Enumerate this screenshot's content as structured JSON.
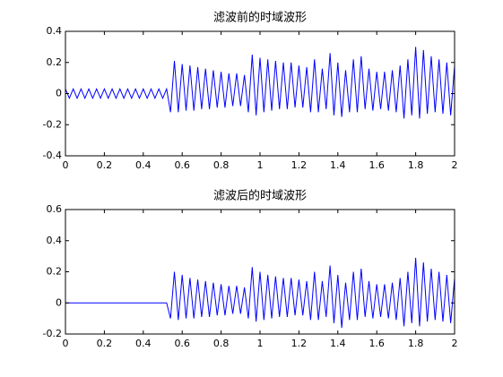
{
  "chart_data": [
    {
      "type": "line",
      "title": "滤波前的时域波形",
      "x": [
        0,
        0.02,
        0.04,
        0.06,
        0.08,
        0.1,
        0.12,
        0.14,
        0.16,
        0.18,
        0.2,
        0.22,
        0.24,
        0.26,
        0.28,
        0.3,
        0.32,
        0.34,
        0.36,
        0.38,
        0.4,
        0.42,
        0.44,
        0.46,
        0.48,
        0.5,
        0.52,
        0.54,
        0.56,
        0.58,
        0.6,
        0.62,
        0.64,
        0.66,
        0.68,
        0.7,
        0.72,
        0.74,
        0.76,
        0.78,
        0.8,
        0.82,
        0.84,
        0.86,
        0.88,
        0.9,
        0.92,
        0.94,
        0.96,
        0.98,
        1,
        1.02,
        1.04,
        1.06,
        1.08,
        1.1,
        1.12,
        1.14,
        1.16,
        1.18,
        1.2,
        1.22,
        1.24,
        1.26,
        1.28,
        1.3,
        1.32,
        1.34,
        1.36,
        1.38,
        1.4,
        1.42,
        1.44,
        1.46,
        1.48,
        1.5,
        1.52,
        1.54,
        1.56,
        1.58,
        1.6,
        1.62,
        1.64,
        1.66,
        1.68,
        1.7,
        1.72,
        1.74,
        1.76,
        1.78,
        1.8,
        1.82,
        1.84,
        1.86,
        1.88,
        1.9,
        1.92,
        1.94,
        1.96,
        1.98,
        2
      ],
      "series": [
        {
          "color": "#0000ff",
          "values": [
            0.03,
            -0.03,
            0.03,
            -0.03,
            0.03,
            -0.03,
            0.03,
            -0.03,
            0.03,
            -0.03,
            0.03,
            -0.03,
            0.03,
            -0.03,
            0.03,
            -0.03,
            0.03,
            -0.03,
            0.03,
            -0.03,
            0.03,
            -0.03,
            0.03,
            -0.03,
            0.03,
            -0.03,
            0.03,
            -0.12,
            0.21,
            -0.12,
            0.19,
            -0.11,
            0.18,
            -0.11,
            0.17,
            -0.1,
            0.16,
            -0.1,
            0.15,
            -0.09,
            0.14,
            -0.09,
            0.13,
            -0.08,
            0.13,
            -0.08,
            0.12,
            -0.12,
            0.25,
            -0.14,
            0.23,
            -0.12,
            0.22,
            -0.11,
            0.21,
            -0.1,
            0.2,
            -0.1,
            0.2,
            -0.09,
            0.18,
            -0.09,
            0.17,
            -0.12,
            0.22,
            -0.12,
            0.16,
            -0.1,
            0.26,
            -0.14,
            0.2,
            -0.15,
            0.15,
            -0.12,
            0.22,
            -0.12,
            0.24,
            -0.1,
            0.16,
            -0.11,
            0.14,
            -0.1,
            0.14,
            -0.11,
            0.15,
            -0.12,
            0.18,
            -0.16,
            0.22,
            -0.14,
            0.3,
            -0.16,
            0.28,
            -0.13,
            0.24,
            -0.12,
            0.22,
            -0.13,
            0.2,
            -0.14,
            0.18
          ]
        }
      ],
      "xlim": [
        0,
        2
      ],
      "xticks": [
        0,
        0.2,
        0.4,
        0.6,
        0.8,
        1,
        1.2,
        1.4,
        1.6,
        1.8,
        2
      ],
      "ylim": [
        -0.4,
        0.4
      ],
      "yticks": [
        -0.4,
        -0.2,
        0,
        0.2,
        0.4
      ]
    },
    {
      "type": "line",
      "title": "滤波后的时域波形",
      "x": [
        0,
        0.02,
        0.04,
        0.06,
        0.08,
        0.1,
        0.12,
        0.14,
        0.16,
        0.18,
        0.2,
        0.22,
        0.24,
        0.26,
        0.28,
        0.3,
        0.32,
        0.34,
        0.36,
        0.38,
        0.4,
        0.42,
        0.44,
        0.46,
        0.48,
        0.5,
        0.52,
        0.54,
        0.56,
        0.58,
        0.6,
        0.62,
        0.64,
        0.66,
        0.68,
        0.7,
        0.72,
        0.74,
        0.76,
        0.78,
        0.8,
        0.82,
        0.84,
        0.86,
        0.88,
        0.9,
        0.92,
        0.94,
        0.96,
        0.98,
        1,
        1.02,
        1.04,
        1.06,
        1.08,
        1.1,
        1.12,
        1.14,
        1.16,
        1.18,
        1.2,
        1.22,
        1.24,
        1.26,
        1.28,
        1.3,
        1.32,
        1.34,
        1.36,
        1.38,
        1.4,
        1.42,
        1.44,
        1.46,
        1.48,
        1.5,
        1.52,
        1.54,
        1.56,
        1.58,
        1.6,
        1.62,
        1.64,
        1.66,
        1.68,
        1.7,
        1.72,
        1.74,
        1.76,
        1.78,
        1.8,
        1.82,
        1.84,
        1.86,
        1.88,
        1.9,
        1.92,
        1.94,
        1.96,
        1.98,
        2
      ],
      "series": [
        {
          "color": "#0000ff",
          "values": [
            0,
            0,
            0,
            0,
            0,
            0,
            0,
            0,
            0,
            0,
            0,
            0,
            0,
            0,
            0,
            0,
            0,
            0,
            0,
            0,
            0,
            0,
            0,
            0,
            0,
            0,
            0,
            -0.1,
            0.2,
            -0.11,
            0.18,
            -0.1,
            0.16,
            -0.1,
            0.15,
            -0.09,
            0.14,
            -0.09,
            0.13,
            -0.08,
            0.12,
            -0.08,
            0.11,
            -0.07,
            0.11,
            -0.07,
            0.1,
            -0.1,
            0.23,
            -0.12,
            0.2,
            -0.11,
            0.18,
            -0.1,
            0.17,
            -0.09,
            0.16,
            -0.09,
            0.16,
            -0.08,
            0.15,
            -0.08,
            0.14,
            -0.11,
            0.2,
            -0.11,
            0.14,
            -0.09,
            0.24,
            -0.13,
            0.18,
            -0.16,
            0.13,
            -0.11,
            0.2,
            -0.11,
            0.22,
            -0.09,
            0.14,
            -0.1,
            0.12,
            -0.09,
            0.12,
            -0.1,
            0.13,
            -0.11,
            0.16,
            -0.15,
            0.2,
            -0.13,
            0.29,
            -0.15,
            0.26,
            -0.12,
            0.22,
            -0.11,
            0.2,
            -0.12,
            0.18,
            -0.13,
            0.16
          ]
        }
      ],
      "xlim": [
        0,
        2
      ],
      "xticks": [
        0,
        0.2,
        0.4,
        0.6,
        0.8,
        1,
        1.2,
        1.4,
        1.6,
        1.8,
        2
      ],
      "ylim": [
        -0.2,
        0.6
      ],
      "yticks": [
        -0.2,
        0,
        0.2,
        0.4,
        0.6
      ]
    }
  ]
}
